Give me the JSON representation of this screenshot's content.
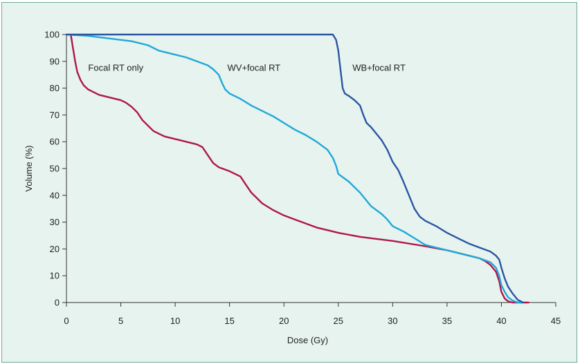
{
  "chart_data": {
    "type": "line",
    "xlabel": "Dose (Gy)",
    "ylabel": "Volume (%)",
    "xlim": [
      0,
      45
    ],
    "ylim": [
      0,
      100
    ],
    "xticks": [
      0,
      5,
      10,
      15,
      20,
      25,
      30,
      35,
      40,
      45
    ],
    "yticks": [
      0,
      10,
      20,
      30,
      40,
      50,
      60,
      70,
      80,
      90,
      100
    ],
    "grid": false,
    "legend": "inline labels",
    "series": [
      {
        "name": "Focal RT only",
        "color": "#b0154a",
        "x": [
          0.4,
          0.6,
          0.8,
          1.0,
          1.3,
          1.6,
          2.0,
          2.5,
          3.0,
          4.0,
          5.0,
          5.5,
          6.0,
          6.5,
          7.0,
          7.5,
          8.0,
          9.0,
          10.0,
          11.0,
          12.0,
          12.5,
          13.0,
          13.5,
          14.0,
          15.0,
          16.0,
          16.5,
          17.0,
          18.0,
          19.0,
          20.0,
          21.0,
          22.0,
          23.0,
          24.0,
          25.0,
          27.0,
          30.0,
          33.0,
          35.0,
          36.0,
          37.0,
          38.0,
          38.5,
          39.0,
          39.5,
          39.8,
          40.0,
          40.3,
          40.6,
          41.0,
          42.5
        ],
        "y": [
          100,
          95,
          90,
          86,
          83,
          81,
          79.5,
          78.5,
          77.5,
          76.5,
          75.5,
          74.5,
          73,
          71,
          68,
          66,
          64,
          62,
          61,
          60,
          59,
          58,
          55,
          52,
          50.5,
          49,
          47,
          44,
          41,
          37,
          34.5,
          32.5,
          31,
          29.5,
          28,
          27,
          26,
          24.5,
          23,
          21,
          19.5,
          18.5,
          17.5,
          16.5,
          15.5,
          14,
          11.5,
          8,
          4,
          1.5,
          0.5,
          0,
          0
        ]
      },
      {
        "name": "WV + focal RT",
        "color": "#1fa8d8",
        "x": [
          0,
          2.0,
          4.0,
          6.0,
          7.5,
          8.5,
          9.5,
          11.0,
          12.0,
          13.0,
          13.5,
          14.0,
          14.3,
          14.6,
          15.0,
          16.0,
          17.0,
          18.0,
          19.0,
          20.0,
          21.0,
          22.0,
          23.0,
          24.0,
          24.5,
          24.8,
          25.0,
          25.5,
          26.0,
          26.5,
          27.0,
          27.5,
          28.0,
          29.0,
          29.5,
          30.0,
          31.0,
          32.0,
          33.0,
          34.0,
          35.0,
          36.0,
          37.0,
          38.0,
          39.0,
          39.5,
          39.8,
          40.0,
          40.3,
          40.6,
          41.0,
          41.5,
          42.0
        ],
        "y": [
          100,
          99.5,
          98.5,
          97.5,
          96,
          94,
          93,
          91.5,
          90,
          88.5,
          87,
          85,
          82,
          79.5,
          78,
          76,
          73.5,
          71.5,
          69.5,
          67,
          64.5,
          62.5,
          60,
          57,
          54,
          51,
          48,
          46.5,
          45,
          43,
          41,
          38.5,
          36,
          33,
          31,
          28.5,
          26.5,
          24,
          21.5,
          20.5,
          19.5,
          18.5,
          17.5,
          16.5,
          15,
          13,
          10,
          6.5,
          4,
          2,
          0.8,
          0,
          0
        ]
      },
      {
        "name": "WB + focal RT",
        "color": "#2a55a3",
        "x": [
          0,
          10.0,
          20.0,
          24.5,
          24.8,
          25.0,
          25.2,
          25.4,
          25.6,
          26.0,
          26.5,
          27.0,
          27.3,
          27.6,
          28.0,
          28.5,
          29.0,
          29.5,
          30.0,
          30.5,
          31.0,
          31.5,
          32.0,
          32.5,
          33.0,
          34.0,
          35.0,
          36.0,
          37.0,
          38.0,
          39.0,
          39.5,
          39.8,
          40.0,
          40.3,
          40.6,
          41.0,
          41.5,
          42.0
        ],
        "y": [
          100,
          100,
          100,
          100,
          98,
          94,
          87,
          80,
          78,
          77,
          75.5,
          73.5,
          70,
          67,
          65.5,
          63,
          60.5,
          57,
          52.5,
          49.5,
          45,
          40,
          35,
          32,
          30.5,
          28.5,
          26,
          24,
          22,
          20.5,
          19,
          17.5,
          16,
          13,
          9,
          6,
          3.5,
          1,
          0
        ]
      }
    ],
    "annotations": [
      {
        "text": "Focal RT only",
        "x": 2.0,
        "y": 88
      },
      {
        "text": "WV+focal RT",
        "x": 14.8,
        "y": 88
      },
      {
        "text": "WB+focal RT",
        "x": 26.3,
        "y": 88
      }
    ]
  }
}
